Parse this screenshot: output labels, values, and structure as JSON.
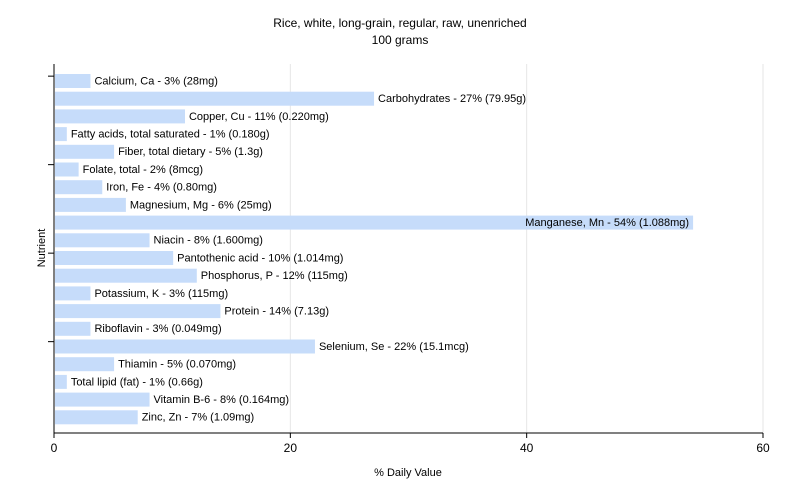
{
  "chart_data": {
    "type": "bar",
    "orientation": "horizontal",
    "title": "Rice, white, long-grain, regular, raw, unenriched",
    "subtitle": "100 grams",
    "xlabel": "% Daily Value",
    "ylabel": "Nutrient",
    "xlim": [
      0,
      60
    ],
    "xticks": [
      0,
      20,
      40,
      60
    ],
    "grid": true,
    "bar_color": "#c6dcfa",
    "categories": [
      "Calcium, Ca",
      "Carbohydrates",
      "Copper, Cu",
      "Fatty acids, total saturated",
      "Fiber, total dietary",
      "Folate, total",
      "Iron, Fe",
      "Magnesium, Mg",
      "Manganese, Mn",
      "Niacin",
      "Pantothenic acid",
      "Phosphorus, P",
      "Potassium, K",
      "Protein",
      "Riboflavin",
      "Selenium, Se",
      "Thiamin",
      "Total lipid (fat)",
      "Vitamin B-6",
      "Zinc, Zn"
    ],
    "values": [
      3,
      27,
      11,
      1,
      5,
      2,
      4,
      6,
      54,
      8,
      10,
      12,
      3,
      14,
      3,
      22,
      5,
      1,
      8,
      7
    ],
    "labels": [
      "Calcium, Ca - 3% (28mg)",
      "Carbohydrates - 27% (79.95g)",
      "Copper, Cu - 11% (0.220mg)",
      "Fatty acids, total saturated - 1% (0.180g)",
      "Fiber, total dietary - 5% (1.3g)",
      "Folate, total - 2% (8mcg)",
      "Iron, Fe - 4% (0.80mg)",
      "Magnesium, Mg - 6% (25mg)",
      "Manganese, Mn - 54% (1.088mg)",
      "Niacin - 8% (1.600mg)",
      "Pantothenic acid - 10% (1.014mg)",
      "Phosphorus, P - 12% (115mg)",
      "Potassium, K - 3% (115mg)",
      "Protein - 14% (7.13g)",
      "Riboflavin - 3% (0.049mg)",
      "Selenium, Se - 22% (15.1mcg)",
      "Thiamin - 5% (0.070mg)",
      "Total lipid (fat) - 1% (0.66g)",
      "Vitamin B-6 - 8% (0.164mg)",
      "Zinc, Zn - 7% (1.09mg)"
    ]
  }
}
